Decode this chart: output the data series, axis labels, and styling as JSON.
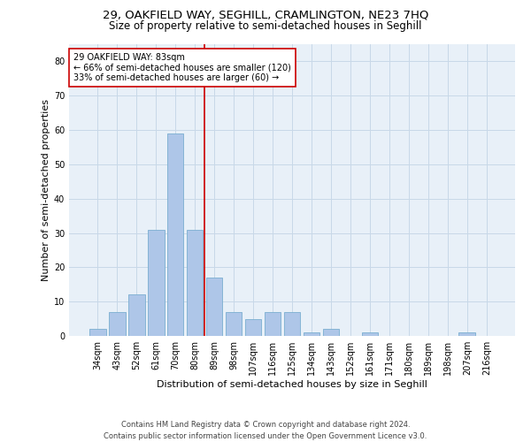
{
  "title": "29, OAKFIELD WAY, SEGHILL, CRAMLINGTON, NE23 7HQ",
  "subtitle": "Size of property relative to semi-detached houses in Seghill",
  "xlabel": "Distribution of semi-detached houses by size in Seghill",
  "ylabel": "Number of semi-detached properties",
  "categories": [
    "34sqm",
    "43sqm",
    "52sqm",
    "61sqm",
    "70sqm",
    "80sqm",
    "89sqm",
    "98sqm",
    "107sqm",
    "116sqm",
    "125sqm",
    "134sqm",
    "143sqm",
    "152sqm",
    "161sqm",
    "171sqm",
    "180sqm",
    "189sqm",
    "198sqm",
    "207sqm",
    "216sqm"
  ],
  "values": [
    2,
    7,
    12,
    31,
    59,
    31,
    17,
    7,
    5,
    7,
    7,
    1,
    2,
    0,
    1,
    0,
    0,
    0,
    0,
    1,
    0
  ],
  "bar_color": "#aec6e8",
  "bar_edge_color": "#7aaed0",
  "vline_x": 5.5,
  "vline_color": "#cc0000",
  "annotation_text": "29 OAKFIELD WAY: 83sqm\n← 66% of semi-detached houses are smaller (120)\n33% of semi-detached houses are larger (60) →",
  "annotation_box_color": "#ffffff",
  "annotation_box_edge": "#cc0000",
  "ylim": [
    0,
    85
  ],
  "yticks": [
    0,
    10,
    20,
    30,
    40,
    50,
    60,
    70,
    80
  ],
  "grid_color": "#c8d8e8",
  "bg_color": "#e8f0f8",
  "footnote": "Contains HM Land Registry data © Crown copyright and database right 2024.\nContains public sector information licensed under the Open Government Licence v3.0.",
  "title_fontsize": 9.5,
  "subtitle_fontsize": 8.5,
  "ylabel_fontsize": 8,
  "xlabel_fontsize": 8,
  "footnote_fontsize": 6,
  "tick_fontsize": 7,
  "annot_fontsize": 7
}
